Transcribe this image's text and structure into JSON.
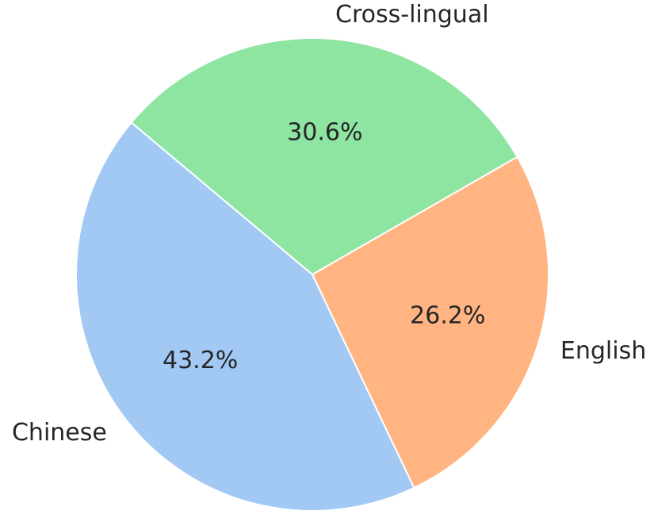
{
  "chart_data": {
    "type": "pie",
    "categories": [
      "Chinese",
      "English",
      "Cross-lingual"
    ],
    "values": [
      43.2,
      26.2,
      30.6
    ],
    "value_labels": [
      "43.2%",
      "26.2%",
      "30.6%"
    ],
    "colors": [
      "#a1c9f4",
      "#ffb482",
      "#8de5a1"
    ]
  }
}
